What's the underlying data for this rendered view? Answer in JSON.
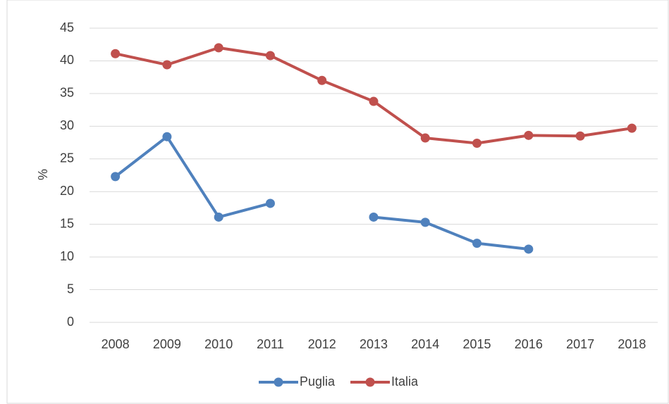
{
  "chart_data": {
    "type": "line",
    "ylabel": "%",
    "categories": [
      "2008",
      "2009",
      "2010",
      "2011",
      "2012",
      "2013",
      "2014",
      "2015",
      "2016",
      "2017",
      "2018"
    ],
    "series": [
      {
        "name": "Puglia",
        "color": "#4f81bd",
        "values": [
          22.3,
          28.4,
          16.1,
          18.2,
          null,
          16.1,
          15.3,
          12.1,
          11.2,
          null,
          null
        ]
      },
      {
        "name": "Italia",
        "color": "#c0504d",
        "values": [
          41.1,
          39.4,
          42.0,
          40.8,
          37.0,
          33.8,
          28.2,
          27.4,
          28.6,
          28.5,
          29.7
        ]
      }
    ],
    "ylim": [
      0,
      45
    ],
    "yticks": [
      0,
      5,
      10,
      15,
      20,
      25,
      30,
      35,
      40,
      45
    ],
    "grid": true,
    "legend": "bottom"
  }
}
